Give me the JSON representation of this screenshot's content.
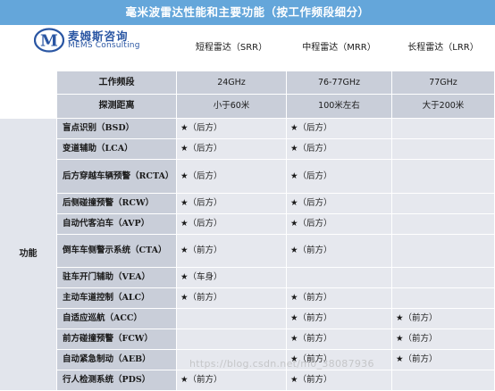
{
  "title": "毫米波雷达性能和主要功能（按工作频段细分）",
  "logo": {
    "cn": "麦姆斯咨询",
    "en": "MEMS Consulting",
    "mark": "M"
  },
  "columns": [
    "短程雷达（SRR）",
    "中程雷达（MRR）",
    "长程雷达（LRR）"
  ],
  "specs": [
    {
      "label": "工作频段",
      "values": [
        "24GHz",
        "76-77GHz",
        "77GHz"
      ]
    },
    {
      "label": "探测距离",
      "values": [
        "小于60米",
        "100米左右",
        "大于200米"
      ]
    }
  ],
  "func_group_label": "功能",
  "functions": [
    {
      "label": "盲点识别（BSD）",
      "values": [
        "★（后方）",
        "★（后方）",
        ""
      ]
    },
    {
      "label": "变道辅助（LCA）",
      "values": [
        "★（后方）",
        "★（后方）",
        ""
      ]
    },
    {
      "label": "后方穿越车辆预警（RCTA）",
      "values": [
        "★（后方）",
        "★（后方）",
        ""
      ]
    },
    {
      "label": "后侧碰撞预警（RCW）",
      "values": [
        "★（后方）",
        "★（后方）",
        ""
      ]
    },
    {
      "label": "自动代客泊车（AVP）",
      "values": [
        "★（后方）",
        "★（后方）",
        ""
      ]
    },
    {
      "label": "倒车车侧警示系统（CTA）",
      "values": [
        "★（前方）",
        "★（前方）",
        ""
      ]
    },
    {
      "label": "驻车开门辅助（VEA）",
      "values": [
        "★（车身）",
        "",
        ""
      ]
    },
    {
      "label": "主动车道控制（ALC）",
      "values": [
        "★（前方）",
        "★（前方）",
        ""
      ]
    },
    {
      "label": "自适应巡航（ACC）",
      "values": [
        "",
        "★（前方）",
        "★（前方）"
      ]
    },
    {
      "label": "前方碰撞预警（FCW）",
      "values": [
        "",
        "★（前方）",
        "★（前方）"
      ]
    },
    {
      "label": "自动紧急制动（AEB）",
      "values": [
        "",
        "★（前方）",
        "★（前方）"
      ]
    },
    {
      "label": "行人检测系统（PDS）",
      "values": [
        "★（前方）",
        "★（前方）",
        ""
      ]
    }
  ],
  "watermark": "https://blog.csdn.net/m0_38087936",
  "colors": {
    "title_bg": "#64a6da",
    "label_bg": "#c9ced9",
    "value_bg": "#e6e8ee",
    "logo": "#2a56a3"
  }
}
